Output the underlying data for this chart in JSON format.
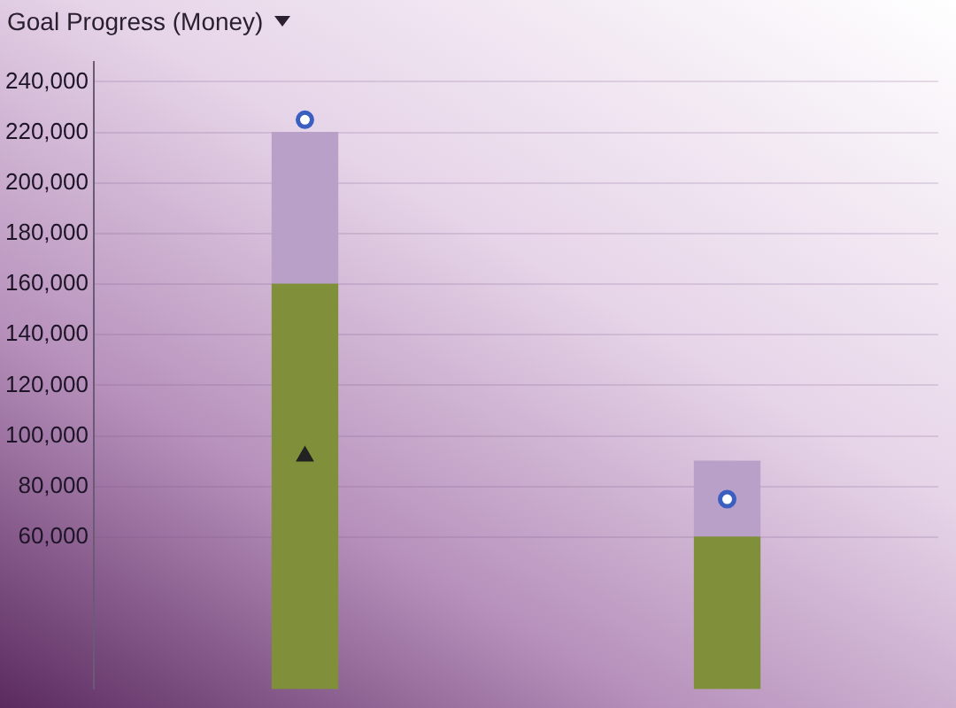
{
  "chart_data": {
    "type": "bar",
    "title": "Goal Progress (Money)",
    "categories": [
      null,
      null
    ],
    "stacked": true,
    "series": [
      {
        "color": "#7f8f3a",
        "values": [
          160000,
          60000
        ]
      },
      {
        "color": "#b9a0c8",
        "values": [
          60000,
          30000
        ]
      },
      {
        "type": "scatter",
        "marker": "circle",
        "color": "#3a5fc0",
        "values": [
          225000,
          75000
        ]
      },
      {
        "type": "scatter",
        "marker": "triangle",
        "color": "#222222",
        "values": [
          92000,
          null
        ]
      }
    ],
    "ylim": [
      0,
      248000
    ],
    "yticks": [
      {
        "value": 60000,
        "label": "60,000"
      },
      {
        "value": 80000,
        "label": "80,000"
      },
      {
        "value": 100000,
        "label": "100,000"
      },
      {
        "value": 120000,
        "label": "120,000"
      },
      {
        "value": 140000,
        "label": "140,000"
      },
      {
        "value": 160000,
        "label": "160,000"
      },
      {
        "value": 180000,
        "label": "180,000"
      },
      {
        "value": 200000,
        "label": "200,000"
      },
      {
        "value": 220000,
        "label": "220,000"
      },
      {
        "value": 240000,
        "label": "240,000"
      }
    ],
    "grid": "y",
    "legend": false,
    "tick_labels": "y"
  }
}
